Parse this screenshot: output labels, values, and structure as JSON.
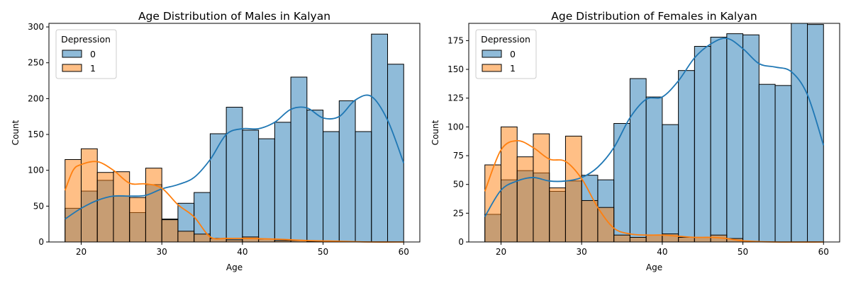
{
  "chart_data": [
    {
      "type": "histogram",
      "title": "Age Distribution of Males in Kalyan",
      "xlabel": "Age",
      "ylabel": "Count",
      "xlim": [
        16,
        62
      ],
      "ylim": [
        0,
        305
      ],
      "xticks": [
        20,
        30,
        40,
        50,
        60
      ],
      "yticks": [
        0,
        50,
        100,
        150,
        200,
        250,
        300
      ],
      "bin_edges": [
        18,
        20,
        22,
        24,
        26,
        28,
        30,
        32,
        34,
        36,
        38,
        40,
        42,
        44,
        46,
        48,
        50,
        52,
        54,
        56,
        58,
        60
      ],
      "legend": {
        "title": "Depression",
        "position": "upper left",
        "entries": [
          "0",
          "1"
        ]
      },
      "series": [
        {
          "name": "0",
          "color": "#1f77b4",
          "values": [
            47,
            71,
            86,
            64,
            41,
            80,
            32,
            54,
            69,
            151,
            188,
            156,
            144,
            167,
            230,
            184,
            154,
            197,
            154,
            290,
            248
          ],
          "kde": [
            [
              18,
              32
            ],
            [
              20,
              47
            ],
            [
              22,
              58
            ],
            [
              24,
              64
            ],
            [
              26,
              64
            ],
            [
              28,
              65
            ],
            [
              30,
              74
            ],
            [
              32,
              80
            ],
            [
              34,
              90
            ],
            [
              36,
              115
            ],
            [
              38,
              150
            ],
            [
              40,
              158
            ],
            [
              42,
              158
            ],
            [
              44,
              167
            ],
            [
              46,
              185
            ],
            [
              48,
              187
            ],
            [
              50,
              173
            ],
            [
              52,
              175
            ],
            [
              54,
              198
            ],
            [
              56,
              203
            ],
            [
              58,
              170
            ],
            [
              60,
              110
            ]
          ]
        },
        {
          "name": "1",
          "color": "#ff7f0e",
          "values": [
            115,
            130,
            97,
            98,
            62,
            103,
            31,
            15,
            11,
            5,
            3,
            7,
            4,
            2,
            2,
            1,
            0,
            0,
            0,
            0,
            0
          ],
          "kde": [
            [
              18,
              72
            ],
            [
              19,
              100
            ],
            [
              20,
              108
            ],
            [
              22,
              112
            ],
            [
              24,
              100
            ],
            [
              26,
              82
            ],
            [
              28,
              81
            ],
            [
              30,
              75
            ],
            [
              32,
              52
            ],
            [
              34,
              35
            ],
            [
              36,
              7
            ],
            [
              38,
              5
            ],
            [
              40,
              5
            ],
            [
              44,
              4
            ],
            [
              48,
              2
            ],
            [
              52,
              1
            ],
            [
              56,
              0
            ],
            [
              60,
              0
            ]
          ]
        }
      ]
    },
    {
      "type": "histogram",
      "title": "Age Distribution of Females in Kalyan",
      "xlabel": "Age",
      "ylabel": "Count",
      "xlim": [
        16,
        62
      ],
      "ylim": [
        0,
        190
      ],
      "xticks": [
        20,
        30,
        40,
        50,
        60
      ],
      "yticks": [
        0,
        25,
        50,
        75,
        100,
        125,
        150,
        175
      ],
      "bin_edges": [
        18,
        20,
        22,
        24,
        26,
        28,
        30,
        32,
        34,
        36,
        38,
        40,
        42,
        44,
        46,
        48,
        50,
        52,
        54,
        56,
        58,
        60
      ],
      "legend": {
        "title": "Depression",
        "position": "upper left",
        "entries": [
          "0",
          "1"
        ]
      },
      "series": [
        {
          "name": "0",
          "color": "#1f77b4",
          "values": [
            24,
            54,
            62,
            60,
            44,
            53,
            58,
            54,
            103,
            142,
            126,
            102,
            149,
            170,
            178,
            181,
            180,
            137,
            136,
            190,
            189
          ],
          "kde": [
            [
              18,
              22
            ],
            [
              20,
              45
            ],
            [
              22,
              53
            ],
            [
              24,
              56
            ],
            [
              26,
              53
            ],
            [
              28,
              53
            ],
            [
              30,
              56
            ],
            [
              32,
              65
            ],
            [
              34,
              82
            ],
            [
              36,
              108
            ],
            [
              38,
              124
            ],
            [
              40,
              126
            ],
            [
              42,
              140
            ],
            [
              44,
              160
            ],
            [
              46,
              172
            ],
            [
              48,
              177
            ],
            [
              50,
              168
            ],
            [
              52,
              155
            ],
            [
              54,
              152
            ],
            [
              56,
              148
            ],
            [
              58,
              128
            ],
            [
              60,
              84
            ]
          ]
        },
        {
          "name": "1",
          "color": "#ff7f0e",
          "values": [
            67,
            100,
            74,
            94,
            47,
            92,
            36,
            30,
            6,
            4,
            6,
            7,
            4,
            4,
            6,
            3,
            0,
            0,
            0,
            0,
            0
          ],
          "kde": [
            [
              18,
              44
            ],
            [
              20,
              80
            ],
            [
              22,
              88
            ],
            [
              24,
              82
            ],
            [
              26,
              72
            ],
            [
              28,
              70
            ],
            [
              30,
              55
            ],
            [
              32,
              30
            ],
            [
              34,
              12
            ],
            [
              36,
              7
            ],
            [
              38,
              6
            ],
            [
              40,
              6
            ],
            [
              42,
              5
            ],
            [
              44,
              4
            ],
            [
              46,
              4
            ],
            [
              48,
              3
            ],
            [
              50,
              1
            ],
            [
              54,
              0
            ],
            [
              60,
              0
            ]
          ]
        }
      ]
    }
  ]
}
